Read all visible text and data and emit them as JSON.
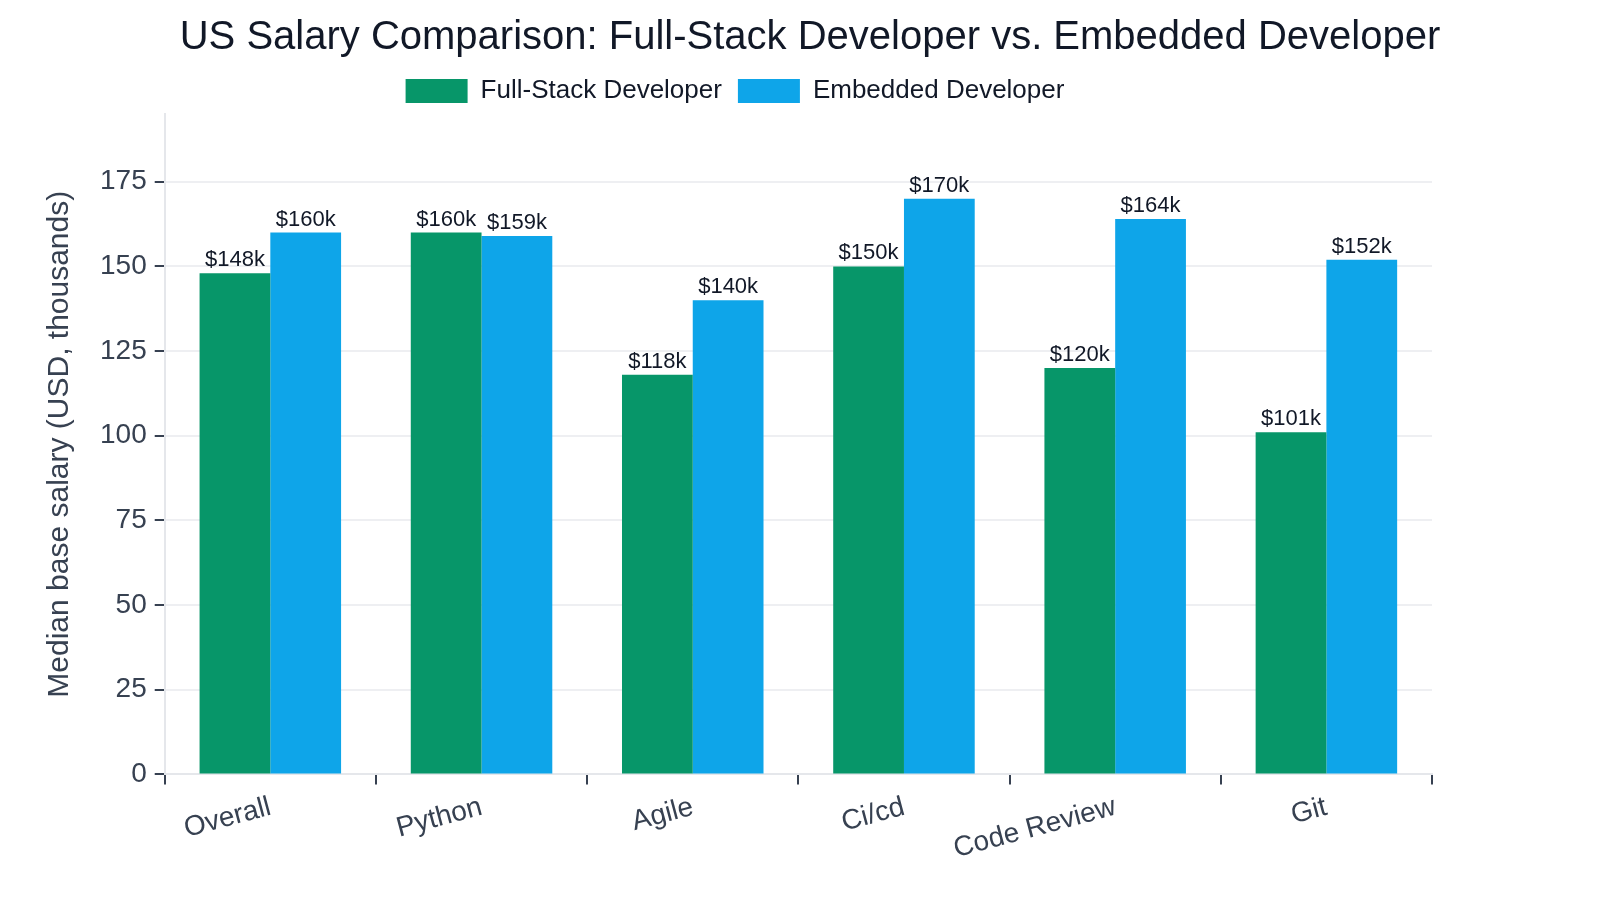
{
  "chart_data": {
    "type": "bar",
    "title": "US Salary Comparison: Full-Stack Developer vs. Embedded Developer",
    "ylabel": "Median base salary (USD, thousands)",
    "categories": [
      "Overall",
      "Python",
      "Agile",
      "Ci/cd",
      "Code Review",
      "Git"
    ],
    "series": [
      {
        "name": "Full-Stack Developer",
        "color": "#079669",
        "values": [
          148,
          160,
          118,
          150,
          120,
          101
        ],
        "value_labels": [
          "$148k",
          "$160k",
          "$118k",
          "$150k",
          "$120k",
          "$101k"
        ]
      },
      {
        "name": "Embedded Developer",
        "color": "#0ea5e9",
        "values": [
          160,
          159,
          140,
          170,
          164,
          152
        ],
        "value_labels": [
          "$160k",
          "$159k",
          "$140k",
          "$170k",
          "$164k",
          "$152k"
        ]
      }
    ],
    "ylim": [
      0,
      195
    ],
    "yticks": [
      0,
      25,
      50,
      75,
      100,
      125,
      150,
      175
    ],
    "grid": "y",
    "legend": "top"
  }
}
